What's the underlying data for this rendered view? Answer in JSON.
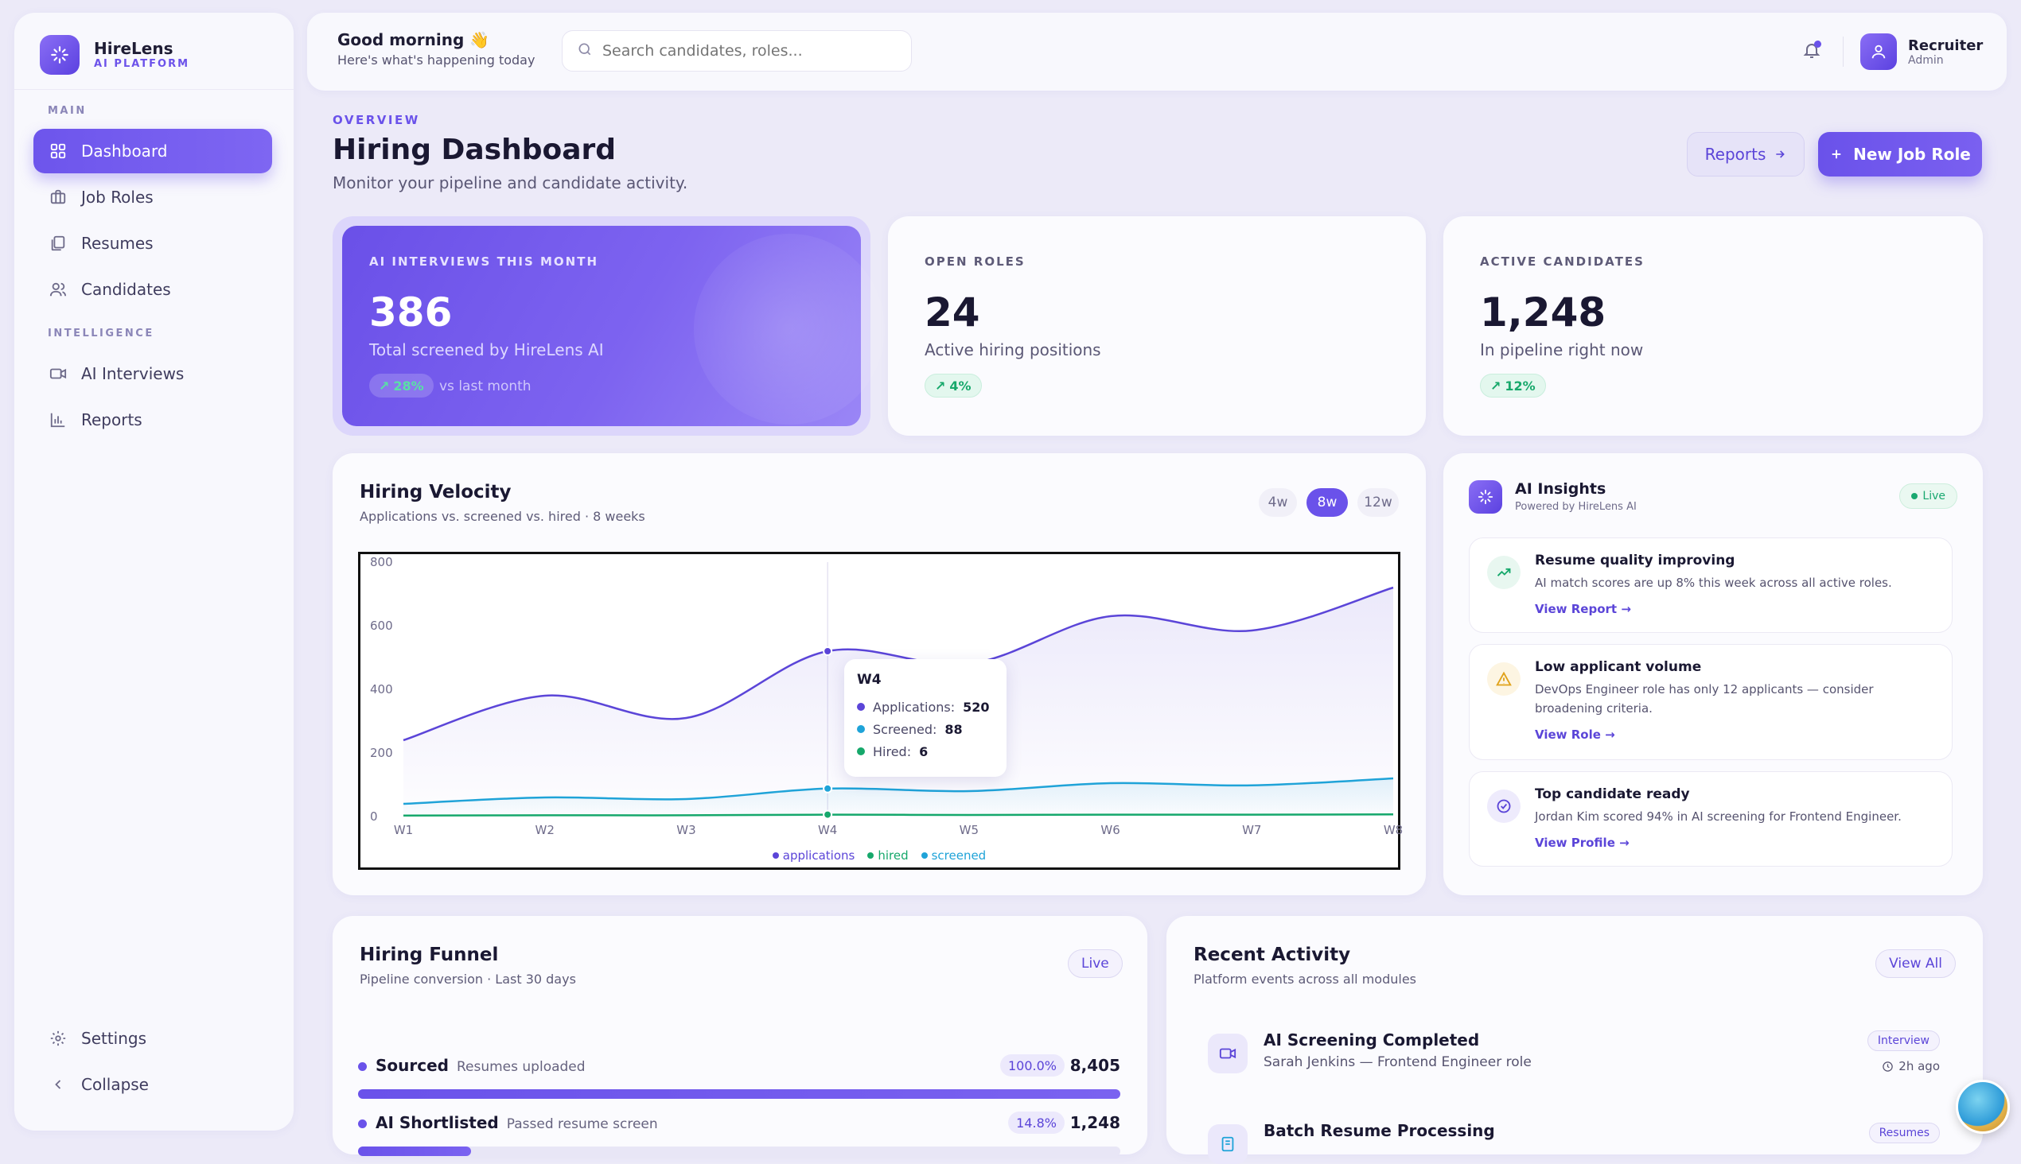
{
  "brand": {
    "name": "HireLens",
    "sub": "AI PLATFORM"
  },
  "sidebar": {
    "section_main": "MAIN",
    "section_intel": "INTELLIGENCE",
    "items": [
      {
        "label": "Dashboard",
        "icon": "grid-icon"
      },
      {
        "label": "Job Roles",
        "icon": "briefcase-icon"
      },
      {
        "label": "Resumes",
        "icon": "document-icon"
      },
      {
        "label": "Candidates",
        "icon": "users-icon"
      },
      {
        "label": "AI Interviews",
        "icon": "video-icon"
      },
      {
        "label": "Reports",
        "icon": "bar-chart-icon"
      }
    ],
    "settings": "Settings",
    "collapse": "Collapse"
  },
  "topbar": {
    "greeting": "Good morning 👋",
    "greeting_sub": "Here's what's happening today",
    "search_placeholder": "Search candidates, roles...",
    "user_name": "Recruiter",
    "user_role": "Admin"
  },
  "header": {
    "overline": "OVERVIEW",
    "title": "Hiring Dashboard",
    "subtitle": "Monitor your pipeline and candidate activity.",
    "reports_btn": "Reports",
    "new_btn": "New Job Role"
  },
  "stats": [
    {
      "label": "AI INTERVIEWS THIS MONTH",
      "value": "386",
      "sub": "Total screened by HireLens AI",
      "change": "28%",
      "change_note": "vs last month"
    },
    {
      "label": "OPEN ROLES",
      "value": "24",
      "sub": "Active hiring positions",
      "change": "4%"
    },
    {
      "label": "ACTIVE CANDIDATES",
      "value": "1,248",
      "sub": "In pipeline right now",
      "change": "12%"
    }
  ],
  "velocity": {
    "title": "Hiring Velocity",
    "subtitle": "Applications vs. screened vs. hired · 8 weeks",
    "ranges": [
      "4w",
      "8w",
      "12w"
    ],
    "active_range": "8w",
    "tooltip": {
      "week": "W4",
      "applications_label": "Applications:",
      "applications": "520",
      "screened_label": "Screened:",
      "screened": "88",
      "hired_label": "Hired:",
      "hired": "6"
    }
  },
  "chart_data": {
    "type": "line",
    "x": [
      "W1",
      "W2",
      "W3",
      "W4",
      "W5",
      "W6",
      "W7",
      "W8"
    ],
    "ylim": [
      0,
      800
    ],
    "yticks": [
      "0",
      "200",
      "400",
      "600",
      "800"
    ],
    "grid": false,
    "legend": "bottom",
    "series": [
      {
        "name": "applications",
        "color": "#5b45d8",
        "values": [
          240,
          380,
          310,
          520,
          480,
          630,
          585,
          720
        ]
      },
      {
        "name": "hired",
        "color": "#16a86b",
        "values": [
          3,
          4,
          4,
          6,
          5,
          6,
          6,
          7
        ]
      },
      {
        "name": "screened",
        "color": "#1fa3d8",
        "values": [
          40,
          60,
          55,
          88,
          80,
          105,
          98,
          120
        ]
      }
    ]
  },
  "insights": {
    "title": "AI Insights",
    "subtitle": "Powered by HireLens AI",
    "badge": "Live",
    "items": [
      {
        "title": "Resume quality improving",
        "desc": "AI match scores are up 8% this week across all active roles.",
        "link": "View Report",
        "icon": "trending-up-icon",
        "color": "#16a86b"
      },
      {
        "title": "Low applicant volume",
        "desc": "DevOps Engineer role has only 12 applicants — consider broadening criteria.",
        "link": "View Role",
        "icon": "warning-icon",
        "color": "#e0a21a"
      },
      {
        "title": "Top candidate ready",
        "desc": "Jordan Kim scored 94% in AI screening for Frontend Engineer.",
        "link": "View Profile",
        "icon": "check-circle-icon",
        "color": "#5b45d8"
      }
    ]
  },
  "funnel": {
    "title": "Hiring Funnel",
    "subtitle": "Pipeline conversion · Last 30 days",
    "badge": "Live",
    "rows": [
      {
        "name": "Sourced",
        "desc": "Resumes uploaded",
        "pct": "100.0%",
        "value": "8,405",
        "fraction": 1.0
      },
      {
        "name": "AI Shortlisted",
        "desc": "Passed resume screen",
        "pct": "14.8%",
        "value": "1,248",
        "fraction": 0.148
      }
    ]
  },
  "activity": {
    "title": "Recent Activity",
    "subtitle": "Platform events across all modules",
    "view_all": "View All",
    "items": [
      {
        "title": "AI Screening Completed",
        "sub": "Sarah Jenkins — Frontend Engineer role",
        "tag": "Interview",
        "time": "2h ago"
      },
      {
        "title": "Batch Resume Processing",
        "tag": "Resumes"
      }
    ]
  }
}
